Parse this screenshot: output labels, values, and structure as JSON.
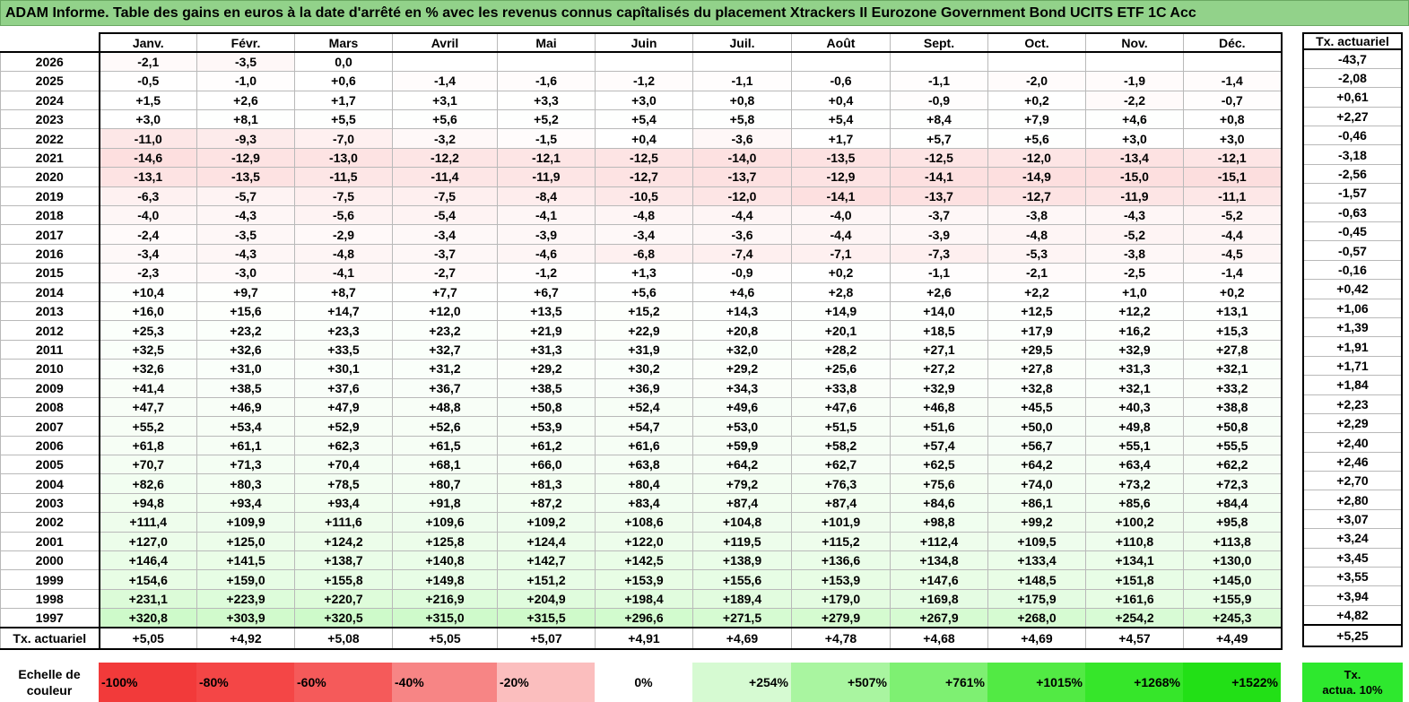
{
  "title": "ADAM Informe. Table des gains en euros à la date d'arrêté en % avec les revenus connus capîtalisés du placement Xtrackers II Eurozone Government Bond UCITS ETF 1C Acc",
  "months": [
    "Janv.",
    "Févr.",
    "Mars",
    "Avril",
    "Mai",
    "Juin",
    "Juil.",
    "Août",
    "Sept.",
    "Oct.",
    "Nov.",
    "Déc."
  ],
  "side_header": "Tx. actuariel",
  "rows": [
    {
      "year": "2026",
      "values": [
        "-2,1",
        "-3,5",
        "0,0",
        "",
        "",
        "",
        "",
        "",
        "",
        "",
        "",
        ""
      ],
      "rate": "-43,7"
    },
    {
      "year": "2025",
      "values": [
        "-0,5",
        "-1,0",
        "+0,6",
        "-1,4",
        "-1,6",
        "-1,2",
        "-1,1",
        "-0,6",
        "-1,1",
        "-2,0",
        "-1,9",
        "-1,4"
      ],
      "rate": "-2,08"
    },
    {
      "year": "2024",
      "values": [
        "+1,5",
        "+2,6",
        "+1,7",
        "+3,1",
        "+3,3",
        "+3,0",
        "+0,8",
        "+0,4",
        "-0,9",
        "+0,2",
        "-2,2",
        "-0,7"
      ],
      "rate": "+0,61"
    },
    {
      "year": "2023",
      "values": [
        "+3,0",
        "+8,1",
        "+5,5",
        "+5,6",
        "+5,2",
        "+5,4",
        "+5,8",
        "+5,4",
        "+8,4",
        "+7,9",
        "+4,6",
        "+0,8"
      ],
      "rate": "+2,27"
    },
    {
      "year": "2022",
      "values": [
        "-11,0",
        "-9,3",
        "-7,0",
        "-3,2",
        "-1,5",
        "+0,4",
        "-3,6",
        "+1,7",
        "+5,7",
        "+5,6",
        "+3,0",
        "+3,0"
      ],
      "rate": "-0,46"
    },
    {
      "year": "2021",
      "values": [
        "-14,6",
        "-12,9",
        "-13,0",
        "-12,2",
        "-12,1",
        "-12,5",
        "-14,0",
        "-13,5",
        "-12,5",
        "-12,0",
        "-13,4",
        "-12,1"
      ],
      "rate": "-3,18"
    },
    {
      "year": "2020",
      "values": [
        "-13,1",
        "-13,5",
        "-11,5",
        "-11,4",
        "-11,9",
        "-12,7",
        "-13,7",
        "-12,9",
        "-14,1",
        "-14,9",
        "-15,0",
        "-15,1"
      ],
      "rate": "-2,56"
    },
    {
      "year": "2019",
      "values": [
        "-6,3",
        "-5,7",
        "-7,5",
        "-7,5",
        "-8,4",
        "-10,5",
        "-12,0",
        "-14,1",
        "-13,7",
        "-12,7",
        "-11,9",
        "-11,1"
      ],
      "rate": "-1,57"
    },
    {
      "year": "2018",
      "values": [
        "-4,0",
        "-4,3",
        "-5,6",
        "-5,4",
        "-4,1",
        "-4,8",
        "-4,4",
        "-4,0",
        "-3,7",
        "-3,8",
        "-4,3",
        "-5,2"
      ],
      "rate": "-0,63"
    },
    {
      "year": "2017",
      "values": [
        "-2,4",
        "-3,5",
        "-2,9",
        "-3,4",
        "-3,9",
        "-3,4",
        "-3,6",
        "-4,4",
        "-3,9",
        "-4,8",
        "-5,2",
        "-4,4"
      ],
      "rate": "-0,45"
    },
    {
      "year": "2016",
      "values": [
        "-3,4",
        "-4,3",
        "-4,8",
        "-3,7",
        "-4,6",
        "-6,8",
        "-7,4",
        "-7,1",
        "-7,3",
        "-5,3",
        "-3,8",
        "-4,5"
      ],
      "rate": "-0,57"
    },
    {
      "year": "2015",
      "values": [
        "-2,3",
        "-3,0",
        "-4,1",
        "-2,7",
        "-1,2",
        "+1,3",
        "-0,9",
        "+0,2",
        "-1,1",
        "-2,1",
        "-2,5",
        "-1,4"
      ],
      "rate": "-0,16"
    },
    {
      "year": "2014",
      "values": [
        "+10,4",
        "+9,7",
        "+8,7",
        "+7,7",
        "+6,7",
        "+5,6",
        "+4,6",
        "+2,8",
        "+2,6",
        "+2,2",
        "+1,0",
        "+0,2"
      ],
      "rate": "+0,42"
    },
    {
      "year": "2013",
      "values": [
        "+16,0",
        "+15,6",
        "+14,7",
        "+12,0",
        "+13,5",
        "+15,2",
        "+14,3",
        "+14,9",
        "+14,0",
        "+12,5",
        "+12,2",
        "+13,1"
      ],
      "rate": "+1,06"
    },
    {
      "year": "2012",
      "values": [
        "+25,3",
        "+23,2",
        "+23,3",
        "+23,2",
        "+21,9",
        "+22,9",
        "+20,8",
        "+20,1",
        "+18,5",
        "+17,9",
        "+16,2",
        "+15,3"
      ],
      "rate": "+1,39"
    },
    {
      "year": "2011",
      "values": [
        "+32,5",
        "+32,6",
        "+33,5",
        "+32,7",
        "+31,3",
        "+31,9",
        "+32,0",
        "+28,2",
        "+27,1",
        "+29,5",
        "+32,9",
        "+27,8"
      ],
      "rate": "+1,91"
    },
    {
      "year": "2010",
      "values": [
        "+32,6",
        "+31,0",
        "+30,1",
        "+31,2",
        "+29,2",
        "+30,2",
        "+29,2",
        "+25,6",
        "+27,2",
        "+27,8",
        "+31,3",
        "+32,1"
      ],
      "rate": "+1,71"
    },
    {
      "year": "2009",
      "values": [
        "+41,4",
        "+38,5",
        "+37,6",
        "+36,7",
        "+38,5",
        "+36,9",
        "+34,3",
        "+33,8",
        "+32,9",
        "+32,8",
        "+32,1",
        "+33,2"
      ],
      "rate": "+1,84"
    },
    {
      "year": "2008",
      "values": [
        "+47,7",
        "+46,9",
        "+47,9",
        "+48,8",
        "+50,8",
        "+52,4",
        "+49,6",
        "+47,6",
        "+46,8",
        "+45,5",
        "+40,3",
        "+38,8"
      ],
      "rate": "+2,23"
    },
    {
      "year": "2007",
      "values": [
        "+55,2",
        "+53,4",
        "+52,9",
        "+52,6",
        "+53,9",
        "+54,7",
        "+53,0",
        "+51,5",
        "+51,6",
        "+50,0",
        "+49,8",
        "+50,8"
      ],
      "rate": "+2,29"
    },
    {
      "year": "2006",
      "values": [
        "+61,8",
        "+61,1",
        "+62,3",
        "+61,5",
        "+61,2",
        "+61,6",
        "+59,9",
        "+58,2",
        "+57,4",
        "+56,7",
        "+55,1",
        "+55,5"
      ],
      "rate": "+2,40"
    },
    {
      "year": "2005",
      "values": [
        "+70,7",
        "+71,3",
        "+70,4",
        "+68,1",
        "+66,0",
        "+63,8",
        "+64,2",
        "+62,7",
        "+62,5",
        "+64,2",
        "+63,4",
        "+62,2"
      ],
      "rate": "+2,46"
    },
    {
      "year": "2004",
      "values": [
        "+82,6",
        "+80,3",
        "+78,5",
        "+80,7",
        "+81,3",
        "+80,4",
        "+79,2",
        "+76,3",
        "+75,6",
        "+74,0",
        "+73,2",
        "+72,3"
      ],
      "rate": "+2,70"
    },
    {
      "year": "2003",
      "values": [
        "+94,8",
        "+93,4",
        "+93,4",
        "+91,8",
        "+87,2",
        "+83,4",
        "+87,4",
        "+87,4",
        "+84,6",
        "+86,1",
        "+85,6",
        "+84,4"
      ],
      "rate": "+2,80"
    },
    {
      "year": "2002",
      "values": [
        "+111,4",
        "+109,9",
        "+111,6",
        "+109,6",
        "+109,2",
        "+108,6",
        "+104,8",
        "+101,9",
        "+98,8",
        "+99,2",
        "+100,2",
        "+95,8"
      ],
      "rate": "+3,07"
    },
    {
      "year": "2001",
      "values": [
        "+127,0",
        "+125,0",
        "+124,2",
        "+125,8",
        "+124,4",
        "+122,0",
        "+119,5",
        "+115,2",
        "+112,4",
        "+109,5",
        "+110,8",
        "+113,8"
      ],
      "rate": "+3,24"
    },
    {
      "year": "2000",
      "values": [
        "+146,4",
        "+141,5",
        "+138,7",
        "+140,8",
        "+142,7",
        "+142,5",
        "+138,9",
        "+136,6",
        "+134,8",
        "+133,4",
        "+134,1",
        "+130,0"
      ],
      "rate": "+3,45"
    },
    {
      "year": "1999",
      "values": [
        "+154,6",
        "+159,0",
        "+155,8",
        "+149,8",
        "+151,2",
        "+153,9",
        "+155,6",
        "+153,9",
        "+147,6",
        "+148,5",
        "+151,8",
        "+145,0"
      ],
      "rate": "+3,55"
    },
    {
      "year": "1998",
      "values": [
        "+231,1",
        "+223,9",
        "+220,7",
        "+216,9",
        "+204,9",
        "+198,4",
        "+189,4",
        "+179,0",
        "+169,8",
        "+175,9",
        "+161,6",
        "+155,9"
      ],
      "rate": "+3,94"
    },
    {
      "year": "1997",
      "values": [
        "+320,8",
        "+303,9",
        "+320,5",
        "+315,0",
        "+315,5",
        "+296,6",
        "+271,5",
        "+279,9",
        "+267,9",
        "+268,0",
        "+254,2",
        "+245,3"
      ],
      "rate": "+4,82"
    }
  ],
  "footer": {
    "label": "Tx. actuariel",
    "values": [
      "+5,05",
      "+4,92",
      "+5,08",
      "+5,05",
      "+5,07",
      "+4,91",
      "+4,69",
      "+4,78",
      "+4,68",
      "+4,69",
      "+4,57",
      "+4,49"
    ],
    "rate": "+5,25"
  },
  "scale": {
    "label_line1": "Echelle de",
    "label_line2": "couleur",
    "items": [
      {
        "text": "-100%",
        "color": "#f23a3a",
        "align": "left"
      },
      {
        "text": "-80%",
        "color": "#f44646",
        "align": "left"
      },
      {
        "text": "-60%",
        "color": "#f55a5a",
        "align": "left"
      },
      {
        "text": "-40%",
        "color": "#f78585",
        "align": "left"
      },
      {
        "text": "-20%",
        "color": "#fbbebe",
        "align": "left"
      },
      {
        "text": "0%",
        "color": "#ffffff",
        "align": "center"
      },
      {
        "text": "+254%",
        "color": "#d6fad2",
        "align": "right"
      },
      {
        "text": "+507%",
        "color": "#a9f5a0",
        "align": "right"
      },
      {
        "text": "+761%",
        "color": "#7ef072",
        "align": "right"
      },
      {
        "text": "+1015%",
        "color": "#52ea44",
        "align": "right"
      },
      {
        "text": "+1268%",
        "color": "#36e62a",
        "align": "right"
      },
      {
        "text": "+1522%",
        "color": "#22e016",
        "align": "right"
      }
    ],
    "side_line1": "Tx.",
    "side_line2": "actua. 10%",
    "side_color": "#2ee82e"
  }
}
